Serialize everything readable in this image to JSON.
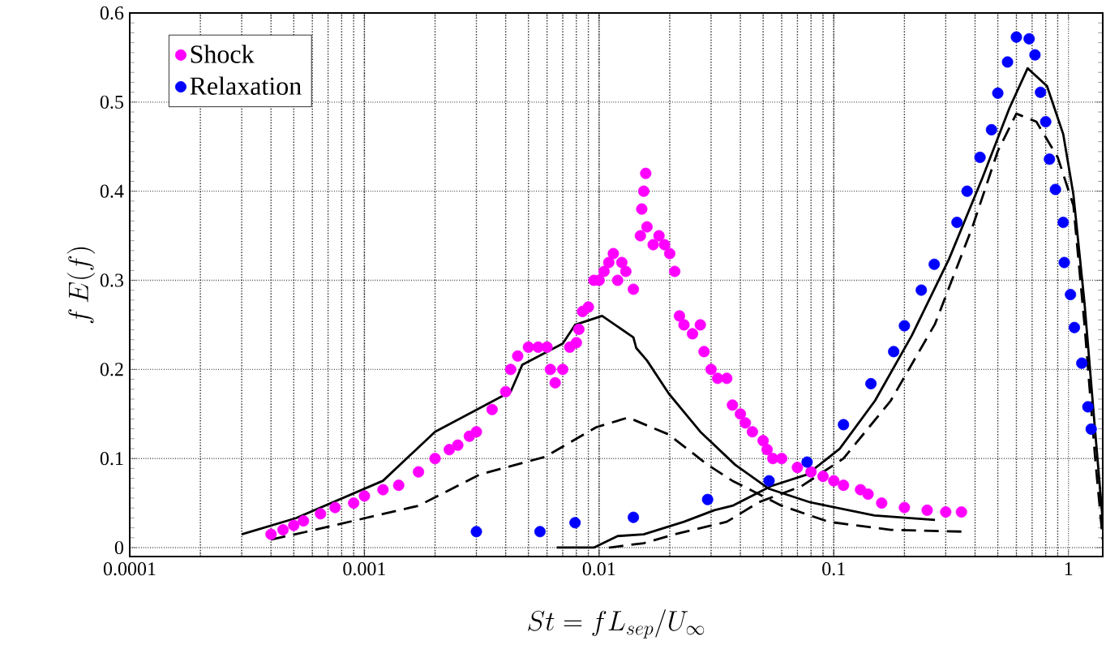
{
  "chart_data": {
    "type": "scatter",
    "xlabel": "St = f L_{sep}/U_{\\infty}",
    "ylabel": "f\\,E(f)",
    "log": "x",
    "grid": true,
    "marker": "circle",
    "legend": "top left",
    "xlim": [
      0.0001,
      1.4
    ],
    "ylim": [
      -0.01,
      0.6
    ],
    "xticks": [
      0.0001,
      0.001,
      0.01,
      0.1,
      1
    ],
    "yticks": [
      0,
      0.1,
      0.2,
      0.3,
      0.4,
      0.5,
      0.6
    ],
    "series": [
      {
        "name": "Shock",
        "color": "#ff00ff",
        "x": [
          0.0004,
          0.00045,
          0.0005,
          0.00055,
          0.00065,
          0.00075,
          0.0009,
          0.001,
          0.0012,
          0.0014,
          0.0017,
          0.002,
          0.0023,
          0.0025,
          0.0028,
          0.003,
          0.0035,
          0.004,
          0.0042,
          0.0045,
          0.005,
          0.0055,
          0.006,
          0.0062,
          0.0065,
          0.007,
          0.0075,
          0.008,
          0.0082,
          0.0085,
          0.009,
          0.0095,
          0.01,
          0.0105,
          0.011,
          0.0115,
          0.012,
          0.0125,
          0.013,
          0.014,
          0.015,
          0.0152,
          0.0155,
          0.0158,
          0.016,
          0.017,
          0.018,
          0.019,
          0.02,
          0.021,
          0.022,
          0.023,
          0.025,
          0.027,
          0.028,
          0.03,
          0.032,
          0.035,
          0.037,
          0.04,
          0.042,
          0.045,
          0.05,
          0.052,
          0.055,
          0.06,
          0.07,
          0.08,
          0.09,
          0.1,
          0.11,
          0.13,
          0.14,
          0.16,
          0.2,
          0.25,
          0.3,
          0.35
        ],
        "values": [
          0.015,
          0.02,
          0.025,
          0.03,
          0.038,
          0.045,
          0.05,
          0.058,
          0.065,
          0.07,
          0.085,
          0.1,
          0.11,
          0.115,
          0.125,
          0.13,
          0.155,
          0.175,
          0.2,
          0.215,
          0.225,
          0.225,
          0.225,
          0.2,
          0.185,
          0.2,
          0.225,
          0.23,
          0.245,
          0.265,
          0.27,
          0.3,
          0.3,
          0.31,
          0.32,
          0.33,
          0.3,
          0.32,
          0.31,
          0.29,
          0.35,
          0.38,
          0.4,
          0.42,
          0.36,
          0.34,
          0.35,
          0.34,
          0.33,
          0.31,
          0.26,
          0.25,
          0.24,
          0.25,
          0.22,
          0.2,
          0.19,
          0.19,
          0.16,
          0.15,
          0.14,
          0.13,
          0.12,
          0.11,
          0.1,
          0.1,
          0.09,
          0.085,
          0.08,
          0.075,
          0.07,
          0.065,
          0.06,
          0.05,
          0.045,
          0.042,
          0.04,
          0.04
        ]
      },
      {
        "name": "Relaxation",
        "color": "#0000ff",
        "x": [
          0.003,
          0.0056,
          0.0079,
          0.014,
          0.029,
          0.053,
          0.077,
          0.11,
          0.144,
          0.18,
          0.2,
          0.236,
          0.268,
          0.335,
          0.37,
          0.42,
          0.47,
          0.5,
          0.55,
          0.6,
          0.68,
          0.72,
          0.76,
          0.8,
          0.83,
          0.88,
          0.95,
          0.96,
          1.02,
          1.06,
          1.14,
          1.21,
          1.25
        ],
        "values": [
          0.018,
          0.018,
          0.028,
          0.034,
          0.054,
          0.075,
          0.096,
          0.138,
          0.184,
          0.22,
          0.249,
          0.289,
          0.318,
          0.365,
          0.4,
          0.438,
          0.469,
          0.51,
          0.545,
          0.573,
          0.571,
          0.553,
          0.511,
          0.478,
          0.436,
          0.402,
          0.365,
          0.32,
          0.284,
          0.247,
          0.207,
          0.158,
          0.133
        ]
      },
      {
        "type": "line",
        "marker": "none",
        "line_style": "solid",
        "color": "#000000",
        "x": [
          0.0003,
          0.00051,
          0.0012,
          0.002,
          0.0042,
          0.0045,
          0.0047,
          0.007,
          0.0079,
          0.0103,
          0.014,
          0.0144,
          0.016,
          0.0198,
          0.027,
          0.038,
          0.053,
          0.079,
          0.149,
          0.27
        ],
        "values": [
          0.015,
          0.033,
          0.075,
          0.13,
          0.175,
          0.193,
          0.205,
          0.229,
          0.25,
          0.26,
          0.236,
          0.224,
          0.21,
          0.173,
          0.13,
          0.093,
          0.066,
          0.051,
          0.036,
          0.031
        ]
      },
      {
        "type": "line",
        "marker": "none",
        "line_style": "dashed",
        "color": "#000000",
        "x": [
          0.0004,
          0.00057,
          0.0017,
          0.0031,
          0.0059,
          0.0097,
          0.0133,
          0.0198,
          0.029,
          0.037,
          0.06,
          0.095,
          0.175,
          0.35
        ],
        "values": [
          0.009,
          0.018,
          0.047,
          0.082,
          0.102,
          0.135,
          0.146,
          0.127,
          0.093,
          0.075,
          0.047,
          0.029,
          0.02,
          0.018
        ]
      },
      {
        "type": "line",
        "marker": "none",
        "line_style": "solid",
        "color": "#000000",
        "x": [
          0.0066,
          0.0095,
          0.012,
          0.0155,
          0.023,
          0.031,
          0.037,
          0.054,
          0.077,
          0.106,
          0.15,
          0.215,
          0.31,
          0.43,
          0.56,
          0.67,
          0.81,
          0.95,
          1.05,
          1.17,
          1.3,
          1.4
        ],
        "values": [
          0,
          0,
          0.013,
          0.015,
          0.029,
          0.042,
          0.047,
          0.069,
          0.082,
          0.111,
          0.165,
          0.238,
          0.324,
          0.415,
          0.493,
          0.538,
          0.518,
          0.464,
          0.396,
          0.275,
          0.13,
          0.03
        ]
      },
      {
        "type": "line",
        "marker": "none",
        "line_style": "dashed",
        "color": "#000000",
        "x": [
          0.011,
          0.0155,
          0.021,
          0.035,
          0.048,
          0.073,
          0.11,
          0.175,
          0.27,
          0.39,
          0.5,
          0.6,
          0.73,
          0.9,
          1.05,
          1.17,
          1.3,
          1.4
        ],
        "values": [
          0,
          0.005,
          0.015,
          0.029,
          0.051,
          0.069,
          0.1,
          0.165,
          0.251,
          0.36,
          0.445,
          0.487,
          0.478,
          0.438,
          0.384,
          0.251,
          0.1,
          0.009
        ]
      }
    ]
  }
}
